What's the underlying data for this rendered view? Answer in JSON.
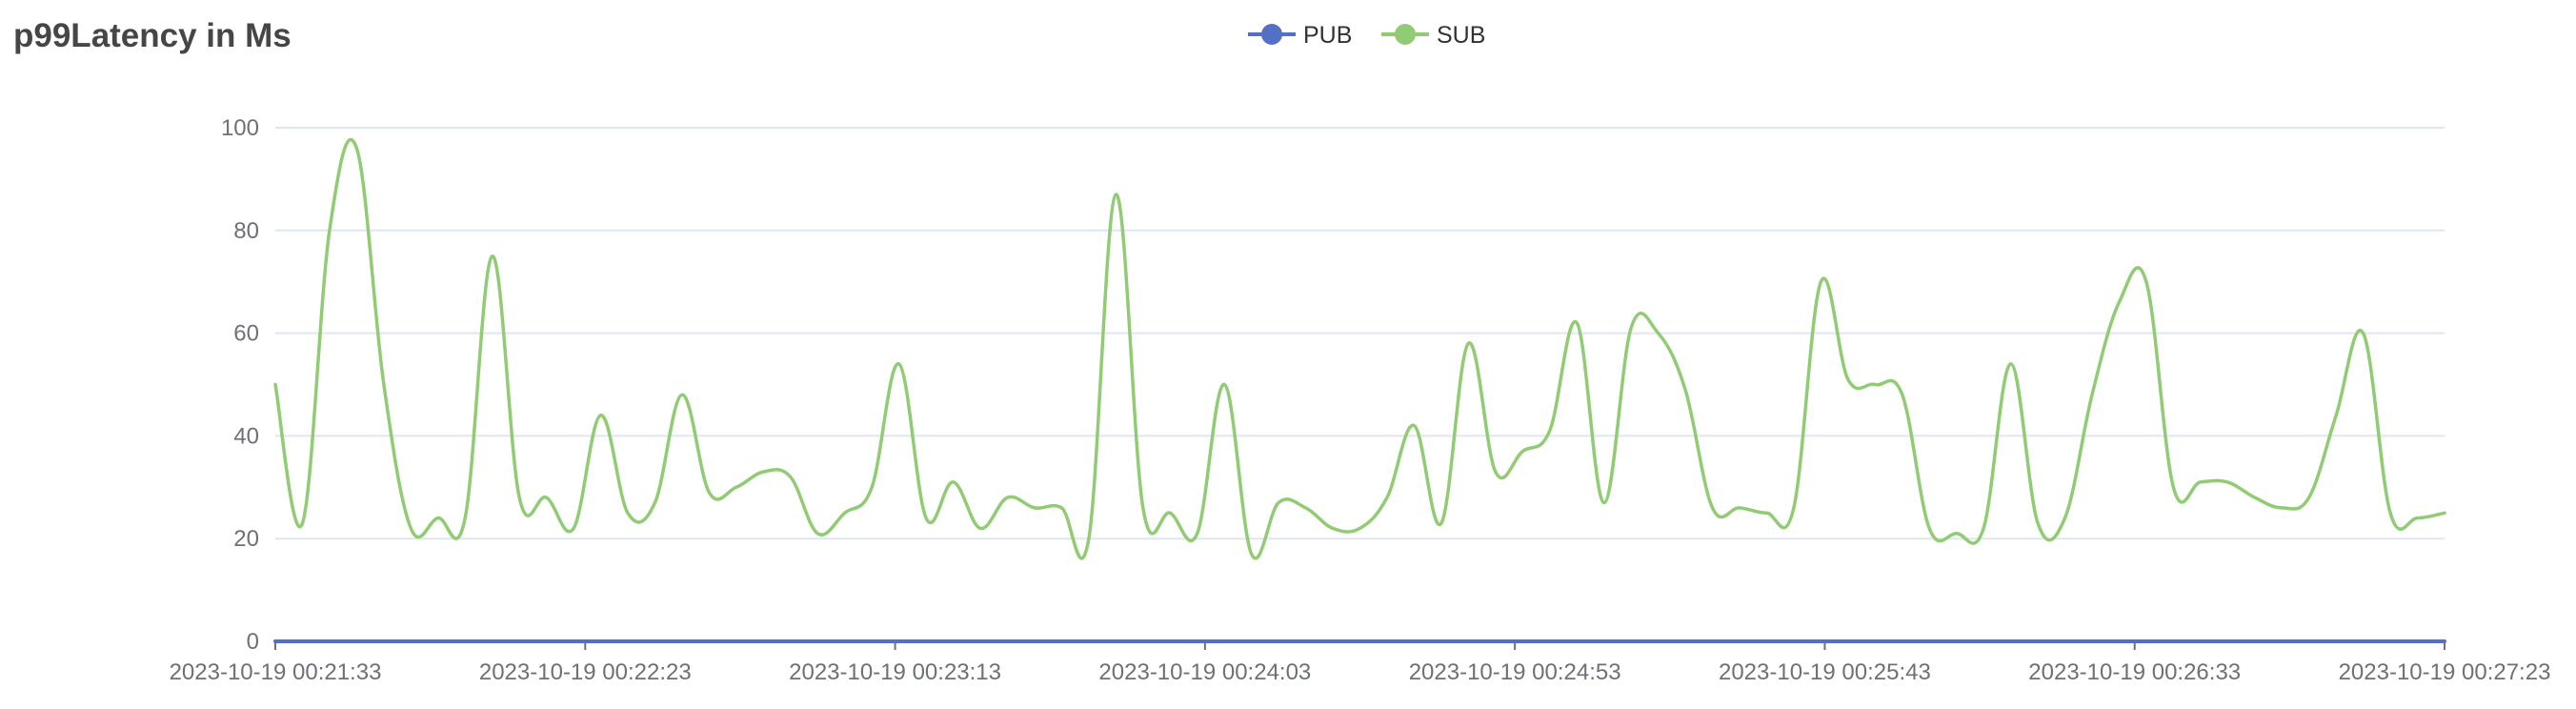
{
  "chart_data": {
    "type": "line",
    "title": "p99Latency in Ms",
    "xlabel": "",
    "ylabel": "",
    "x_tick_labels": [
      "2023-10-19 00:21:33",
      "2023-10-19 00:22:23",
      "2023-10-19 00:23:13",
      "2023-10-19 00:24:03",
      "2023-10-19 00:24:53",
      "2023-10-19 00:25:43",
      "2023-10-19 00:26:33",
      "2023-10-19 00:27:23"
    ],
    "x_start": "2023-10-19 00:21:33",
    "x_end": "2023-10-19 00:27:23",
    "y_ticks": [
      0,
      20,
      40,
      60,
      80,
      100
    ],
    "ylim": [
      0,
      100
    ],
    "grid": true,
    "legend": "top-center",
    "series": [
      {
        "name": "PUB",
        "color": "#5470c6",
        "values": [
          0,
          0
        ]
      },
      {
        "name": "SUB",
        "color": "#91cc75",
        "values": [
          50,
          23,
          80,
          96,
          50,
          22,
          24,
          24,
          75,
          28,
          28,
          22,
          44,
          25,
          27,
          48,
          29,
          30,
          33,
          32,
          21,
          25,
          30,
          54,
          24,
          31,
          22,
          28,
          26,
          26,
          20,
          87,
          26,
          25,
          21,
          50,
          17,
          27,
          26,
          22,
          22,
          28,
          42,
          23,
          58,
          33,
          37,
          41,
          62,
          27,
          61,
          60,
          49,
          26,
          26,
          25,
          26,
          70,
          51,
          50,
          48,
          22,
          21,
          22,
          54,
          23,
          24,
          48,
          66,
          70,
          30,
          31,
          31,
          28,
          26,
          28,
          44,
          60,
          25,
          24,
          25
        ]
      }
    ]
  }
}
